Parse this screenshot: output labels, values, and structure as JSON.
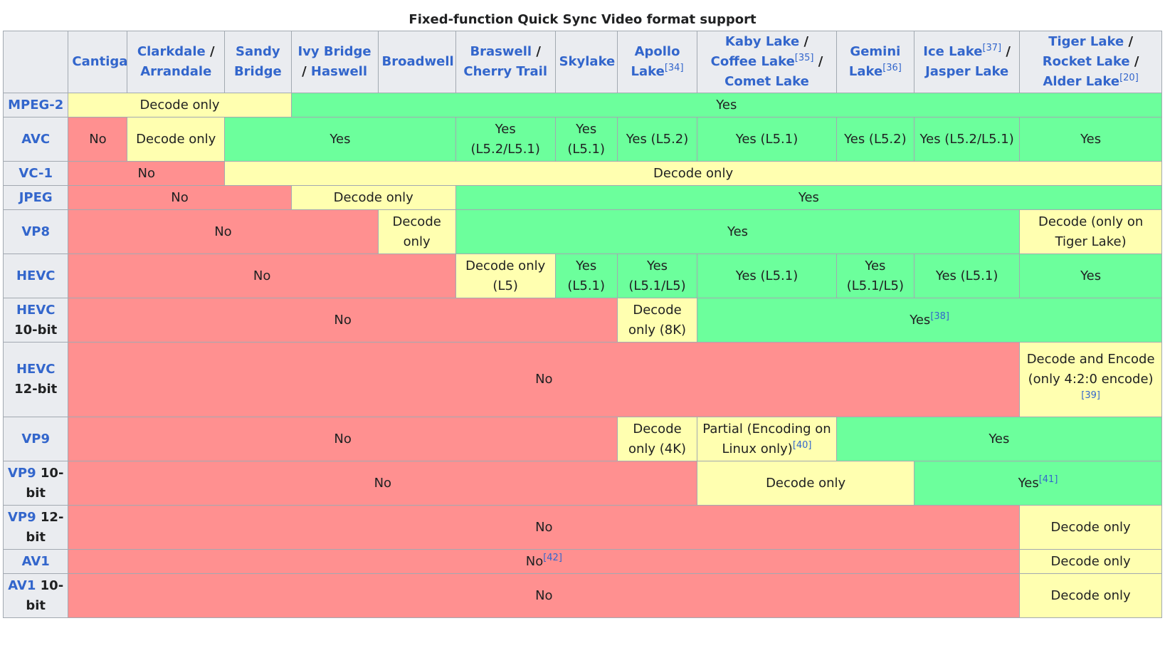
{
  "caption": "Fixed-function Quick Sync Video format support",
  "columns": [
    {
      "parts": [
        "Cantiga"
      ],
      "seps": [],
      "ref": ""
    },
    {
      "parts": [
        "Clarkdale",
        "Arrandale"
      ],
      "seps": [
        " / "
      ],
      "ref": ""
    },
    {
      "parts": [
        "Sandy Bridge"
      ],
      "seps": [],
      "ref": ""
    },
    {
      "parts": [
        "Ivy Bridge",
        "Haswell"
      ],
      "seps": [
        " / "
      ],
      "ref": ""
    },
    {
      "parts": [
        "Broadwell"
      ],
      "seps": [],
      "ref": ""
    },
    {
      "parts": [
        "Braswell",
        "Cherry Trail"
      ],
      "seps": [
        " / "
      ],
      "ref": ""
    },
    {
      "parts": [
        "Skylake"
      ],
      "seps": [],
      "ref": ""
    },
    {
      "parts": [
        "Apollo Lake"
      ],
      "seps": [],
      "ref": "[34]"
    },
    {
      "parts": [
        "Kaby Lake",
        "Coffee Lake",
        "Comet Lake"
      ],
      "seps": [
        " / ",
        "[35] / "
      ],
      "ref": ""
    },
    {
      "parts": [
        "Gemini Lake"
      ],
      "seps": [],
      "ref": "[36]"
    },
    {
      "parts": [
        "Ice Lake",
        "Jasper Lake"
      ],
      "seps": [
        "[37] / "
      ],
      "ref": ""
    },
    {
      "parts": [
        "Tiger Lake",
        "Rocket Lake",
        "Alder Lake"
      ],
      "seps": [
        " / ",
        " / "
      ],
      "ref": "[20]"
    }
  ],
  "rows": [
    {
      "name": "MPEG-2",
      "suffix": "",
      "cells": [
        {
          "span": 3,
          "cls": "dec",
          "text": "Decode only",
          "ref": ""
        },
        {
          "span": 9,
          "cls": "yes",
          "text": "Yes",
          "ref": ""
        }
      ]
    },
    {
      "name": "AVC",
      "suffix": "",
      "cells": [
        {
          "span": 1,
          "cls": "no",
          "text": "No",
          "ref": ""
        },
        {
          "span": 1,
          "cls": "dec",
          "text": "Decode only",
          "ref": ""
        },
        {
          "span": 3,
          "cls": "yes",
          "text": "Yes",
          "ref": ""
        },
        {
          "span": 1,
          "cls": "yes",
          "text": "Yes (L5.2/L5.1)",
          "ref": ""
        },
        {
          "span": 1,
          "cls": "yes",
          "text": "Yes (L5.1)",
          "ref": ""
        },
        {
          "span": 1,
          "cls": "yes",
          "text": "Yes (L5.2)",
          "ref": ""
        },
        {
          "span": 1,
          "cls": "yes",
          "text": "Yes (L5.1)",
          "ref": ""
        },
        {
          "span": 1,
          "cls": "yes",
          "text": "Yes (L5.2)",
          "ref": ""
        },
        {
          "span": 1,
          "cls": "yes",
          "text": "Yes (L5.2/L5.1)",
          "ref": ""
        },
        {
          "span": 1,
          "cls": "yes",
          "text": "Yes",
          "ref": ""
        }
      ]
    },
    {
      "name": "VC-1",
      "suffix": "",
      "cells": [
        {
          "span": 2,
          "cls": "no",
          "text": "No",
          "ref": ""
        },
        {
          "span": 10,
          "cls": "dec",
          "text": "Decode only",
          "ref": ""
        }
      ]
    },
    {
      "name": "JPEG",
      "suffix": "",
      "cells": [
        {
          "span": 3,
          "cls": "no",
          "text": "No",
          "ref": ""
        },
        {
          "span": 2,
          "cls": "dec",
          "text": "Decode only",
          "ref": ""
        },
        {
          "span": 7,
          "cls": "yes",
          "text": "Yes",
          "ref": ""
        }
      ]
    },
    {
      "name": "VP8",
      "suffix": "",
      "cells": [
        {
          "span": 4,
          "cls": "no",
          "text": "No",
          "ref": ""
        },
        {
          "span": 1,
          "cls": "dec",
          "text": "Decode only",
          "ref": ""
        },
        {
          "span": 6,
          "cls": "yes",
          "text": "Yes",
          "ref": ""
        },
        {
          "span": 1,
          "cls": "dec",
          "text": "Decode (only on Tiger Lake)",
          "ref": ""
        }
      ]
    },
    {
      "name": "HEVC",
      "suffix": "",
      "cells": [
        {
          "span": 5,
          "cls": "no",
          "text": "No",
          "ref": ""
        },
        {
          "span": 1,
          "cls": "dec",
          "text": "Decode only (L5)",
          "ref": ""
        },
        {
          "span": 1,
          "cls": "yes",
          "text": "Yes (L5.1)",
          "ref": ""
        },
        {
          "span": 1,
          "cls": "yes",
          "text": "Yes (L5.1/L5)",
          "ref": ""
        },
        {
          "span": 1,
          "cls": "yes",
          "text": "Yes (L5.1)",
          "ref": ""
        },
        {
          "span": 1,
          "cls": "yes",
          "text": "Yes (L5.1/L5)",
          "ref": ""
        },
        {
          "span": 1,
          "cls": "yes",
          "text": "Yes (L5.1)",
          "ref": ""
        },
        {
          "span": 1,
          "cls": "yes",
          "text": "Yes",
          "ref": ""
        }
      ]
    },
    {
      "name": "HEVC",
      "suffix": "10-bit",
      "cells": [
        {
          "span": 7,
          "cls": "no",
          "text": "No",
          "ref": ""
        },
        {
          "span": 1,
          "cls": "dec",
          "text": "Decode only (8K)",
          "ref": ""
        },
        {
          "span": 4,
          "cls": "yes",
          "text": "Yes",
          "ref": "[38]"
        }
      ]
    },
    {
      "name": "HEVC",
      "suffix": "12-bit",
      "cells": [
        {
          "span": 11,
          "cls": "no",
          "text": "No",
          "ref": ""
        },
        {
          "span": 1,
          "cls": "dec",
          "text": "Decode and Encode (only 4:2:0 encode)",
          "ref": "[39]"
        }
      ]
    },
    {
      "name": "VP9",
      "suffix": "",
      "cells": [
        {
          "span": 7,
          "cls": "no",
          "text": "No",
          "ref": ""
        },
        {
          "span": 1,
          "cls": "dec",
          "text": "Decode only (4K)",
          "ref": ""
        },
        {
          "span": 1,
          "cls": "dec",
          "text": "Partial (Encoding on Linux only)",
          "ref": "[40]"
        },
        {
          "span": 3,
          "cls": "yes",
          "text": "Yes",
          "ref": ""
        }
      ]
    },
    {
      "name": "VP9",
      "suffix": "10-bit",
      "cells": [
        {
          "span": 8,
          "cls": "no",
          "text": "No",
          "ref": ""
        },
        {
          "span": 2,
          "cls": "dec",
          "text": "Decode only",
          "ref": ""
        },
        {
          "span": 2,
          "cls": "yes",
          "text": "Yes",
          "ref": "[41]"
        }
      ]
    },
    {
      "name": "VP9",
      "suffix": "12-bit",
      "cells": [
        {
          "span": 11,
          "cls": "no",
          "text": "No",
          "ref": ""
        },
        {
          "span": 1,
          "cls": "dec",
          "text": "Decode only",
          "ref": ""
        }
      ]
    },
    {
      "name": "AV1",
      "suffix": "",
      "cells": [
        {
          "span": 11,
          "cls": "no",
          "text": "No",
          "ref": "[42]"
        },
        {
          "span": 1,
          "cls": "dec",
          "text": "Decode only",
          "ref": ""
        }
      ]
    },
    {
      "name": "AV1",
      "suffix": "10-bit",
      "cells": [
        {
          "span": 11,
          "cls": "no",
          "text": "No",
          "ref": ""
        },
        {
          "span": 1,
          "cls": "dec",
          "text": "Decode only",
          "ref": ""
        }
      ]
    }
  ]
}
